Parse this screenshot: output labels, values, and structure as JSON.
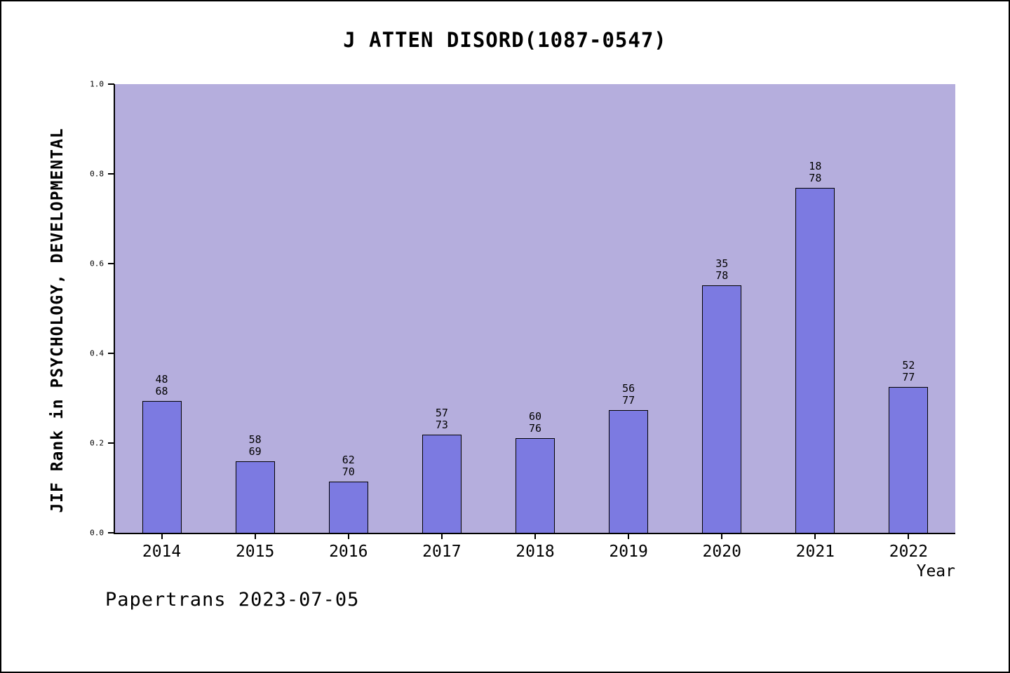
{
  "title": "J ATTEN DISORD(1087-0547)",
  "footer": "Papertrans 2023-07-05",
  "chart_data": {
    "type": "bar",
    "title": "J ATTEN DISORD(1087-0547)",
    "xlabel": "Year",
    "ylabel": "JIF Rank in PSYCHOLOGY, DEVELOPMENTAL",
    "categories": [
      "2014",
      "2015",
      "2016",
      "2017",
      "2018",
      "2019",
      "2020",
      "2021",
      "2022"
    ],
    "values": [
      0.294,
      0.159,
      0.114,
      0.219,
      0.211,
      0.273,
      0.551,
      0.769,
      0.325
    ],
    "bar_labels": [
      [
        "48",
        "68"
      ],
      [
        "58",
        "69"
      ],
      [
        "62",
        "70"
      ],
      [
        "57",
        "73"
      ],
      [
        "60",
        "76"
      ],
      [
        "56",
        "77"
      ],
      [
        "35",
        "78"
      ],
      [
        "18",
        "78"
      ],
      [
        "52",
        "77"
      ]
    ],
    "ylim": [
      0,
      1
    ],
    "yticks": [
      "0.0",
      "0.2",
      "0.4",
      "0.6",
      "0.8",
      "1.0"
    ],
    "legend": null,
    "grid": false,
    "colors": {
      "plot_bg": "#b5aedd",
      "bar": "#7c7ae1",
      "bar_edge": "#000000"
    }
  }
}
